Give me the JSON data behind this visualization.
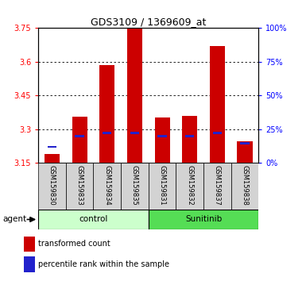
{
  "title": "GDS3109 / 1369609_at",
  "samples": [
    "GSM159830",
    "GSM159833",
    "GSM159834",
    "GSM159835",
    "GSM159831",
    "GSM159832",
    "GSM159837",
    "GSM159838"
  ],
  "red_values": [
    3.19,
    3.355,
    3.585,
    3.748,
    3.353,
    3.358,
    3.67,
    3.248
  ],
  "blue_values": [
    3.222,
    3.27,
    3.285,
    3.285,
    3.268,
    3.268,
    3.285,
    3.238
  ],
  "y_min": 3.15,
  "y_max": 3.75,
  "yticks_red": [
    3.15,
    3.3,
    3.45,
    3.6,
    3.75
  ],
  "yticks_blue": [
    0,
    25,
    50,
    75,
    100
  ],
  "bar_width": 0.55,
  "bar_color": "#cc0000",
  "blue_color": "#2222cc",
  "bar_base": 3.15,
  "control_label": "control",
  "sunitinib_label": "Sunitinib",
  "agent_label": "agent",
  "legend_red": "transformed count",
  "legend_blue": "percentile rank within the sample",
  "bg_control": "#ccffcc",
  "bg_sunitinib": "#55dd55",
  "grid_yticks": [
    3.3,
    3.45,
    3.6
  ]
}
